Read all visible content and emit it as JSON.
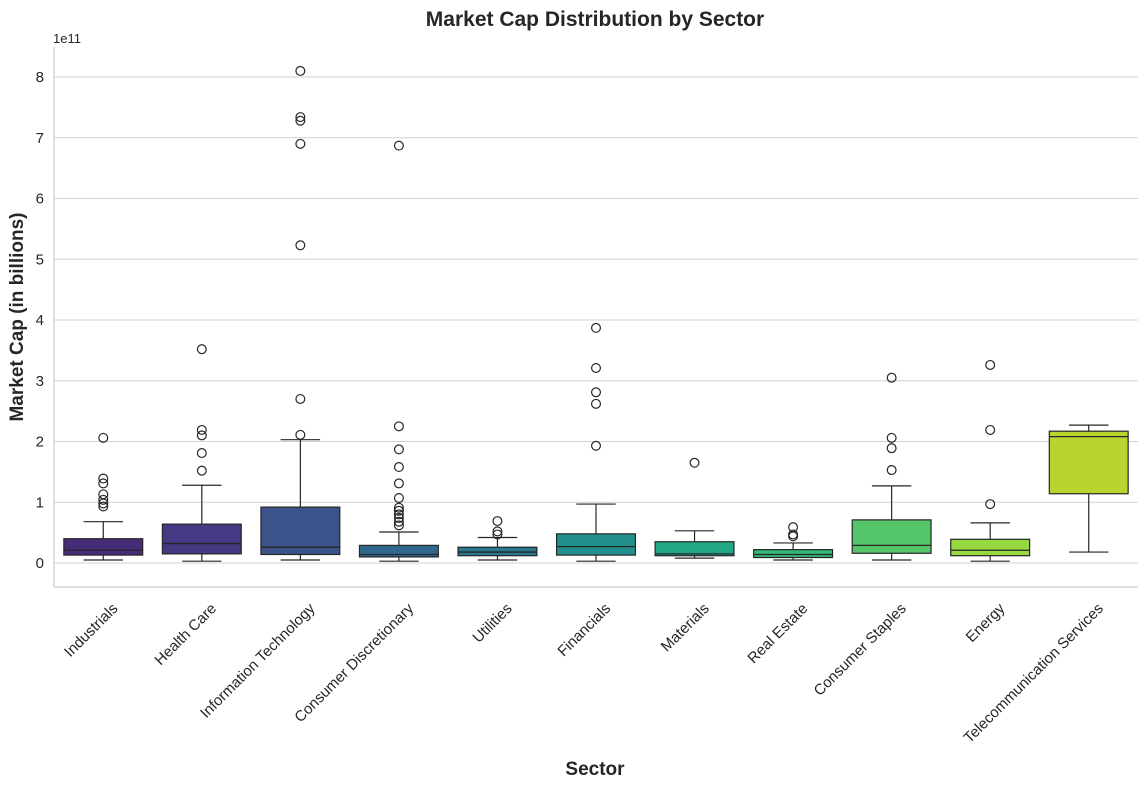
{
  "chart_data": {
    "type": "box",
    "title": "Market Cap Distribution by Sector",
    "xlabel": "Sector",
    "ylabel": "Market Cap (in billions)",
    "y_offset_label": "1e11",
    "y_scale": 100000000000,
    "ylim": [
      -0.4,
      8.5
    ],
    "yticks": [
      0,
      1,
      2,
      3,
      4,
      5,
      6,
      7,
      8
    ],
    "grid": "horizontal",
    "categories": [
      "Industrials",
      "Health Care",
      "Information Technology",
      "Consumer Discretionary",
      "Utilities",
      "Financials",
      "Materials",
      "Real Estate",
      "Consumer Staples",
      "Energy",
      "Telecommunication Services"
    ],
    "boxes": [
      {
        "category": "Industrials",
        "color": "#472c7a",
        "whisker_low": 0.05,
        "q1": 0.13,
        "median": 0.21,
        "q3": 0.4,
        "whisker_high": 0.68,
        "outliers": [
          0.93,
          0.98,
          1.04,
          1.13,
          1.31,
          1.39,
          2.06
        ]
      },
      {
        "category": "Health Care",
        "color": "#443983",
        "whisker_low": 0.03,
        "q1": 0.15,
        "median": 0.32,
        "q3": 0.64,
        "whisker_high": 1.28,
        "outliers": [
          1.52,
          1.81,
          2.1,
          2.19,
          3.52
        ]
      },
      {
        "category": "Information Technology",
        "color": "#3b528b",
        "whisker_low": 0.05,
        "q1": 0.14,
        "median": 0.26,
        "q3": 0.92,
        "whisker_high": 2.03,
        "outliers": [
          2.11,
          2.7,
          5.23,
          6.9,
          7.28,
          7.34,
          8.1
        ]
      },
      {
        "category": "Consumer Discretionary",
        "color": "#31688e",
        "whisker_low": 0.03,
        "q1": 0.1,
        "median": 0.14,
        "q3": 0.29,
        "whisker_high": 0.51,
        "outliers": [
          0.62,
          0.68,
          0.74,
          0.8,
          0.86,
          0.91,
          1.07,
          1.31,
          1.58,
          1.87,
          2.25,
          6.87
        ]
      },
      {
        "category": "Utilities",
        "color": "#2a788e",
        "whisker_low": 0.05,
        "q1": 0.12,
        "median": 0.18,
        "q3": 0.26,
        "whisker_high": 0.42,
        "outliers": [
          0.47,
          0.52,
          0.69
        ]
      },
      {
        "category": "Financials",
        "color": "#21908d",
        "whisker_low": 0.03,
        "q1": 0.13,
        "median": 0.27,
        "q3": 0.48,
        "whisker_high": 0.97,
        "outliers": [
          1.93,
          2.62,
          2.81,
          3.21,
          3.87
        ]
      },
      {
        "category": "Materials",
        "color": "#22a785",
        "whisker_low": 0.08,
        "q1": 0.12,
        "median": 0.15,
        "q3": 0.35,
        "whisker_high": 0.53,
        "outliers": [
          1.65
        ]
      },
      {
        "category": "Real Estate",
        "color": "#35b779",
        "whisker_low": 0.05,
        "q1": 0.09,
        "median": 0.14,
        "q3": 0.22,
        "whisker_high": 0.33,
        "outliers": [
          0.44,
          0.47,
          0.59
        ]
      },
      {
        "category": "Consumer Staples",
        "color": "#54c568",
        "whisker_low": 0.05,
        "q1": 0.16,
        "median": 0.29,
        "q3": 0.71,
        "whisker_high": 1.27,
        "outliers": [
          1.53,
          1.89,
          2.06,
          3.05
        ]
      },
      {
        "category": "Energy",
        "color": "#95d840",
        "whisker_low": 0.03,
        "q1": 0.12,
        "median": 0.21,
        "q3": 0.39,
        "whisker_high": 0.66,
        "outliers": [
          0.97,
          2.19,
          3.26
        ]
      },
      {
        "category": "Telecommunication Services",
        "color": "#b8d42e",
        "whisker_low": 0.18,
        "q1": 1.14,
        "median": 2.08,
        "q3": 2.17,
        "whisker_high": 2.27,
        "outliers": []
      }
    ]
  }
}
